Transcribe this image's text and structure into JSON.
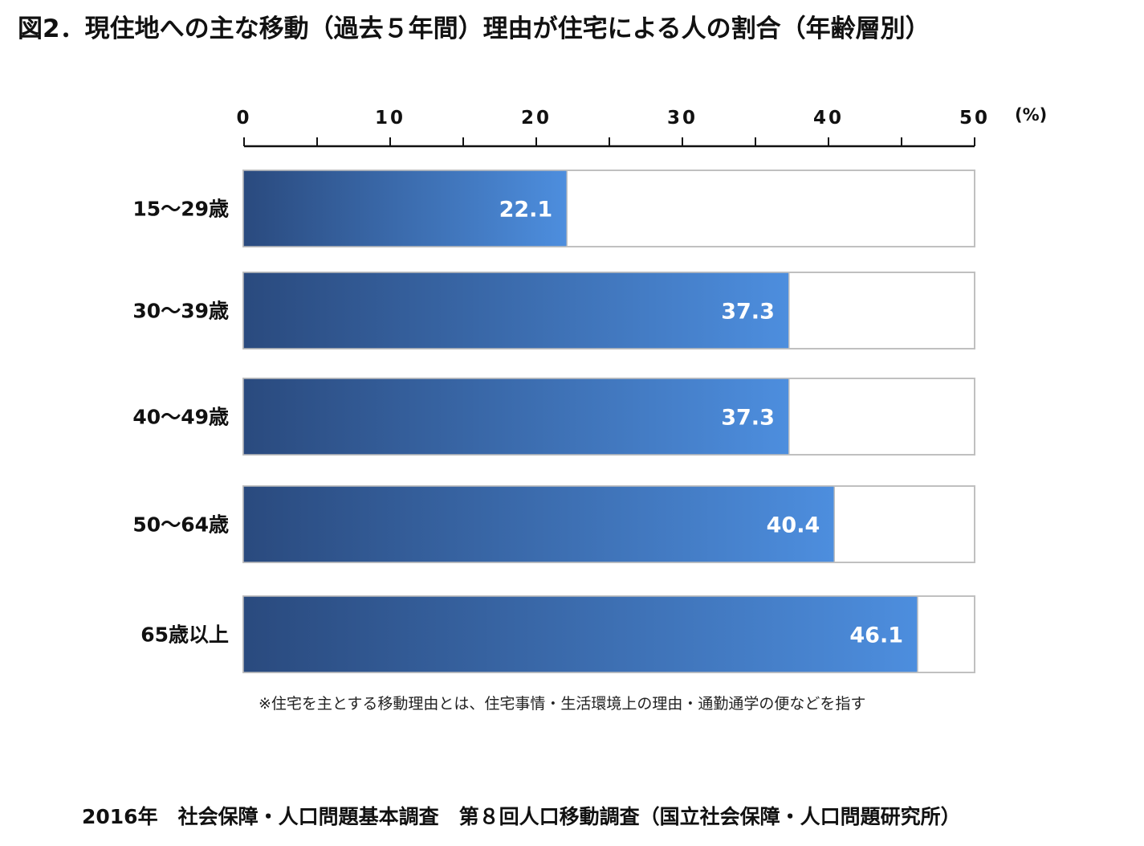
{
  "title": "図2．現住地への主な移動（過去５年間）理由が住宅による人の割合（年齢層別）",
  "footnote": "※住宅を主とする移動理由とは、住宅事情・生活環境上の理由・通勤通学の便などを指す",
  "source": "2016年　社会保障・人口問題基本調査　第８回人口移動調査（国立社会保障・人口問題研究所）",
  "chart_data": {
    "type": "bar",
    "orientation": "horizontal",
    "categories": [
      "15〜29歳",
      "30〜39歳",
      "40〜49歳",
      "50〜64歳",
      "65歳以上"
    ],
    "values": [
      22.1,
      37.3,
      37.3,
      40.4,
      46.1
    ],
    "value_labels": [
      "22.1",
      "37.3",
      "37.3",
      "40.4",
      "46.1"
    ],
    "xlim": [
      0,
      50
    ],
    "x_ticks": [
      0,
      10,
      20,
      30,
      40,
      50
    ],
    "x_tick_labels": [
      "0",
      "10",
      "20",
      "30",
      "40",
      "50"
    ],
    "x_minor_ticks": [
      5,
      15,
      25,
      35,
      45
    ],
    "unit": "(%)",
    "axis_position": "top",
    "grid": false,
    "legend": "none"
  },
  "colors": {
    "bar_gradient_start": "#2a4a7e",
    "bar_gradient_end": "#4d8ede",
    "bar_track_border": "#c0c0c0",
    "bar_track_fill": "#ffffff",
    "axis": "#111111",
    "value_text": "#ffffff"
  }
}
